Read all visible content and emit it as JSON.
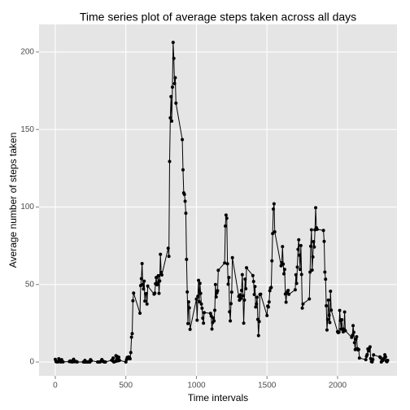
{
  "chart_data": {
    "type": "line",
    "title": "Time series plot of average steps taken across all days",
    "x_label": "Time intervals",
    "y_label": "Average number of steps taken",
    "color": "#000000",
    "xlim": [
      -115,
      2421
    ],
    "ylim": [
      -8.9,
      217.8
    ],
    "xticks": [
      0,
      500,
      1000,
      1500,
      2000
    ],
    "yticks": [
      0,
      50,
      100,
      150,
      200
    ],
    "grid": true,
    "x": [
      0,
      5,
      10,
      15,
      20,
      25,
      30,
      35,
      40,
      45,
      50,
      55,
      100,
      105,
      110,
      115,
      120,
      125,
      130,
      135,
      140,
      145,
      150,
      155,
      200,
      205,
      210,
      215,
      220,
      225,
      230,
      235,
      240,
      245,
      250,
      255,
      300,
      305,
      310,
      315,
      320,
      325,
      330,
      335,
      340,
      345,
      350,
      355,
      400,
      405,
      410,
      415,
      420,
      425,
      430,
      435,
      440,
      445,
      450,
      455,
      500,
      505,
      510,
      515,
      520,
      525,
      530,
      535,
      540,
      545,
      550,
      555,
      600,
      605,
      610,
      615,
      620,
      625,
      630,
      635,
      640,
      645,
      650,
      655,
      700,
      705,
      710,
      715,
      720,
      725,
      730,
      735,
      740,
      745,
      750,
      755,
      800,
      805,
      810,
      815,
      820,
      825,
      830,
      835,
      840,
      845,
      850,
      855,
      900,
      905,
      910,
      915,
      920,
      925,
      930,
      935,
      940,
      945,
      950,
      955,
      1000,
      1005,
      1010,
      1015,
      1020,
      1025,
      1030,
      1035,
      1040,
      1045,
      1050,
      1055,
      1100,
      1105,
      1110,
      1115,
      1120,
      1125,
      1130,
      1135,
      1140,
      1145,
      1150,
      1155,
      1200,
      1205,
      1210,
      1215,
      1220,
      1225,
      1230,
      1235,
      1240,
      1245,
      1250,
      1255,
      1300,
      1305,
      1310,
      1315,
      1320,
      1325,
      1330,
      1335,
      1340,
      1345,
      1350,
      1355,
      1400,
      1405,
      1410,
      1415,
      1420,
      1425,
      1430,
      1435,
      1440,
      1445,
      1450,
      1455,
      1500,
      1505,
      1510,
      1515,
      1520,
      1525,
      1530,
      1535,
      1540,
      1545,
      1550,
      1555,
      1600,
      1605,
      1610,
      1615,
      1620,
      1625,
      1630,
      1635,
      1640,
      1645,
      1650,
      1655,
      1700,
      1705,
      1710,
      1715,
      1720,
      1725,
      1730,
      1735,
      1740,
      1745,
      1750,
      1755,
      1800,
      1805,
      1810,
      1815,
      1820,
      1825,
      1830,
      1835,
      1840,
      1845,
      1850,
      1855,
      1900,
      1905,
      1910,
      1915,
      1920,
      1925,
      1930,
      1935,
      1940,
      1945,
      1950,
      1955,
      2000,
      2005,
      2010,
      2015,
      2020,
      2025,
      2030,
      2035,
      2040,
      2045,
      2050,
      2055,
      2100,
      2105,
      2110,
      2115,
      2120,
      2125,
      2130,
      2135,
      2140,
      2145,
      2150,
      2155,
      2200,
      2205,
      2210,
      2215,
      2220,
      2225,
      2230,
      2235,
      2240,
      2245,
      2250,
      2255,
      2300,
      2305,
      2310,
      2315,
      2320,
      2325,
      2330,
      2335,
      2340,
      2345,
      2350,
      2355
    ],
    "values": [
      1.7,
      0.3,
      0.1,
      0.2,
      0.1,
      2.1,
      0.5,
      0.9,
      0,
      1.5,
      0.3,
      0.1,
      0.3,
      0.7,
      0.2,
      0.3,
      0,
      1.1,
      1.8,
      0.2,
      0.2,
      0.4,
      0.3,
      0,
      0,
      0,
      1.1,
      0,
      0,
      0.1,
      0,
      0.2,
      0,
      0,
      1.5,
      0.9,
      0,
      0,
      0,
      0,
      0.2,
      0.6,
      1.6,
      0.6,
      0.5,
      0.1,
      0,
      0,
      1.2,
      0.9,
      2.6,
      0,
      0.3,
      0.4,
      4.1,
      0.7,
      3.5,
      0.8,
      3.1,
      1.1,
      0,
      1.6,
      3,
      2.2,
      3.3,
      3,
      2.1,
      6.1,
      16,
      18.3,
      39.5,
      44.5,
      31.5,
      49.3,
      53.8,
      63.5,
      50,
      47.1,
      52.2,
      39.3,
      44,
      44.2,
      37.4,
      49,
      43.8,
      44.4,
      50.5,
      54.5,
      49.9,
      50.9,
      55.7,
      44.3,
      52.3,
      69.5,
      57.8,
      56.2,
      73.4,
      68.2,
      129.4,
      157.5,
      171.2,
      155.4,
      177.3,
      206.2,
      195.9,
      179.6,
      183.4,
      167,
      143.5,
      124,
      109.1,
      108.1,
      103.7,
      96,
      66.2,
      45.2,
      24.8,
      38.8,
      35,
      21.1,
      40.6,
      27,
      42.4,
      52.7,
      38.9,
      50.8,
      44.3,
      37.4,
      34.7,
      28.3,
      25.1,
      31.9,
      31.4,
      29.7,
      21.3,
      25.5,
      28.4,
      26.5,
      33.4,
      50,
      42,
      44.6,
      46,
      59.2,
      63.9,
      87.7,
      94.8,
      92.8,
      63.4,
      50.2,
      54.5,
      32.4,
      26.5,
      37.7,
      45.1,
      67.3,
      42.3,
      39.9,
      43.3,
      41,
      46.2,
      56.4,
      42.8,
      25.1,
      40,
      53.5,
      47.3,
      60.8,
      55.8,
      52,
      43.6,
      48.7,
      35.5,
      37.5,
      41.8,
      27.5,
      17.1,
      26.1,
      43.6,
      43.8,
      30,
      36.1,
      35.5,
      38.8,
      46,
      47.8,
      48.1,
      65.3,
      82.9,
      98.7,
      102.1,
      84,
      62.1,
      64.1,
      74.5,
      63.2,
      56.9,
      59.8,
      43.9,
      38.6,
      44.7,
      45.5,
      46.2,
      43.7,
      46.6,
      56.3,
      50.7,
      61.2,
      72.7,
      78.9,
      68.9,
      59.7,
      75.1,
      56.5,
      34.8,
      37.5,
      40.7,
      58,
      74.7,
      85.3,
      59.3,
      67.8,
      77.7,
      74.2,
      85.3,
      99.5,
      86.6,
      85.6,
      84.9,
      77.8,
      58,
      53.4,
      36.3,
      20.7,
      27.4,
      40,
      30.2,
      25.5,
      45.7,
      33.5,
      19.6,
      19,
      19.3,
      33.3,
      26.8,
      21.2,
      27.3,
      21.3,
      19.5,
      21.3,
      32.3,
      20.2,
      15.9,
      17.2,
      23.5,
      19.2,
      12.5,
      8,
      14.7,
      16.3,
      8.7,
      7.8,
      8.1,
      2.6,
      1.5,
      3.7,
      4.8,
      8.5,
      7.1,
      8.7,
      9.8,
      2.2,
      0.3,
      0.1,
      1.6,
      4.6,
      3.3,
      2.8,
      0,
      0.8,
      1,
      1.6,
      2.6,
      4.7,
      3.3,
      0.6,
      0.2,
      1.1
    ]
  }
}
